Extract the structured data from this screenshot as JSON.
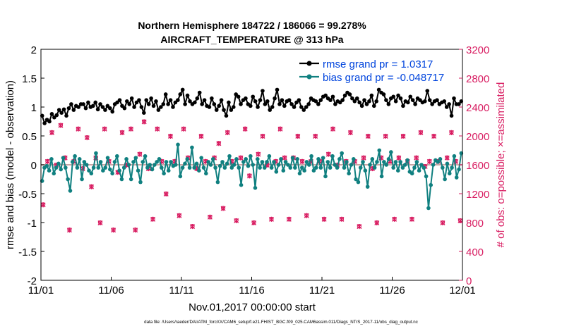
{
  "colors": {
    "rmse": "#000000",
    "bias": "#108080",
    "obs": "#d81b60",
    "zero_line": "#c9a6a6",
    "legend_text": "#0044dd"
  },
  "chart_data": {
    "type": "line",
    "title_line1": "Northern Hemisphere 184722 / 186066 = 99.278%",
    "title_line2": "AIRCRAFT_TEMPERATURE @ 313 hPa",
    "xlabel": "Nov.01,2017 00:00:00 start",
    "ylabel_left": "rmse and bias (model - observation)",
    "ylabel_right": "# of obs: o=possible; ×=assimilated",
    "footer": "data file: /Users/raeder/DAI/ATM_forcXX/CAM6_setup/f.e21.FHIST_BGC.f09_025.CAM6assim.011/Diags_NTrS_2017-11/obs_diag_output.nc",
    "x_ticks": [
      "11/01",
      "11/06",
      "11/11",
      "11/16",
      "11/21",
      "11/26",
      "12/01"
    ],
    "xlim": [
      0,
      30
    ],
    "ylim_left": [
      -2,
      2
    ],
    "ylim_right": [
      0,
      3200
    ],
    "y_ticks_left": [
      "-2",
      "-1.5",
      "-1",
      "-0.5",
      "0",
      "0.5",
      "1",
      "1.5",
      "2"
    ],
    "y_ticks_right": [
      "0",
      "400",
      "800",
      "1200",
      "1600",
      "2000",
      "2400",
      "2800",
      "3200"
    ],
    "legend": [
      "rmse grand pr = 1.0317",
      "bias grand pr = -0.048717"
    ],
    "series": [
      {
        "name": "rmse",
        "values": [
          0.85,
          0.72,
          0.78,
          0.75,
          0.88,
          0.82,
          0.86,
          0.95,
          0.9,
          0.96,
          0.85,
          0.98,
          1.05,
          0.95,
          1.02,
          1.0,
          1.05,
          1.05,
          0.98,
          1.08,
          1.0,
          1.02,
          1.08,
          0.96,
          1.05,
          1.0,
          0.95,
          1.02,
          0.98,
          0.92,
          1.05,
          1.08,
          1.12,
          1.02,
          0.98,
          1.1,
          1.05,
          1.15,
          1.0,
          1.08,
          1.12,
          1.0,
          0.9,
          1.12,
          1.05,
          1.15,
          1.02,
          1.1,
          0.95,
          1.0,
          1.05,
          1.22,
          1.05,
          1.12,
          1.0,
          1.08,
          1.12,
          1.22,
          1.3,
          1.05,
          1.2,
          1.1,
          1.05,
          1.08,
          1.15,
          1.25,
          1.05,
          1.12,
          1.02,
          1.0,
          1.15,
          1.05,
          0.95,
          1.02,
          1.12,
          0.95,
          0.85,
          1.08,
          0.95,
          1.0,
          1.22,
          1.18,
          1.05,
          1.12,
          1.15,
          1.05,
          1.02,
          1.18,
          1.1,
          1.0,
          1.12,
          1.28,
          1.05,
          1.1,
          0.95,
          1.0,
          1.15,
          1.3,
          1.05,
          1.12,
          1.02,
          1.1,
          1.12,
          1.05,
          1.0,
          1.08,
          1.12,
          1.0,
          0.95,
          1.0,
          1.05,
          1.15,
          1.12,
          1.1,
          1.05,
          1.12,
          1.18,
          1.2,
          1.15,
          1.12,
          1.18,
          1.05,
          1.1,
          1.08,
          1.12,
          1.2,
          1.25,
          1.22,
          1.15,
          1.1,
          1.15,
          1.08,
          1.02,
          1.12,
          1.05,
          1.1,
          1.2,
          1.02,
          1.1,
          1.3,
          1.25,
          1.22,
          1.12,
          1.05,
          1.15,
          1.18,
          1.1,
          1.2,
          1.15,
          1.02,
          1.1,
          1.08,
          1.18,
          1.12,
          1.05,
          1.15,
          1.12,
          1.08,
          1.1,
          1.28,
          1.12,
          1.05,
          1.1,
          1.12,
          1.05,
          1.08,
          1.1,
          1.0,
          1.05,
          0.85,
          1.15,
          1.05,
          1.05,
          1.1
        ]
      },
      {
        "name": "bias",
        "values": [
          -0.28,
          -0.05,
          -0.02,
          -0.1,
          0.1,
          -0.15,
          -0.05,
          0.02,
          -0.08,
          0.12,
          -0.05,
          -0.25,
          -0.45,
          0.05,
          0.15,
          -0.05,
          0.1,
          -0.25,
          0.05,
          0.0,
          -0.1,
          -0.15,
          -0.05,
          0.2,
          -0.05,
          0.05,
          -0.1,
          -0.05,
          0.12,
          -0.08,
          -0.15,
          0.05,
          0.15,
          -0.1,
          -0.25,
          -0.05,
          0.1,
          0.0,
          -0.25,
          0.05,
          0.12,
          -0.1,
          -0.3,
          0.05,
          0.15,
          -0.05,
          0.0,
          -0.08,
          0.0,
          0.05,
          0.1,
          -0.05,
          -0.15,
          0.05,
          -0.1,
          0.05,
          -0.02,
          0.0,
          0.35,
          -0.2,
          -0.05,
          0.02,
          0.1,
          -0.05,
          0.3,
          -0.05,
          0.02,
          -0.1,
          0.12,
          -0.05,
          -0.15,
          0.05,
          0.0,
          0.1,
          -0.05,
          -0.3,
          -0.02,
          0.05,
          -0.05,
          0.02,
          0.15,
          -0.05,
          0.0,
          0.1,
          -0.05,
          -0.35,
          0.05,
          0.1,
          -0.02,
          0.15,
          0.0,
          -0.4,
          0.1,
          -0.05,
          0.05,
          -0.05,
          0.05,
          0.15,
          -0.05,
          0.05,
          -0.12,
          0.0,
          0.1,
          -0.1,
          0.05,
          0.0,
          -0.05,
          0.12,
          -0.05,
          0.1,
          -0.15,
          -0.05,
          -0.1,
          0.05,
          0.0,
          0.15,
          -0.1,
          -0.05,
          0.1,
          -0.05,
          0.12,
          -0.2,
          0.05,
          -0.05,
          0.15,
          0.0,
          -0.05,
          0.1,
          0.2,
          -0.05,
          0.05,
          -0.15,
          0.0,
          0.1,
          -0.25,
          -0.3,
          -0.05,
          0.05,
          -0.1,
          -0.38,
          0.0,
          0.1,
          -0.05,
          0.05,
          0.25,
          -0.2,
          0.05,
          0.0,
          0.1,
          0.22,
          -0.05,
          0.05,
          -0.1,
          0.05,
          -0.05,
          0.0,
          0.08,
          -0.12,
          -0.15,
          -0.05,
          0.05,
          -0.1,
          0.0,
          -0.05,
          -0.2,
          -0.75,
          -0.35,
          0.0,
          0.08,
          0.05,
          0.1,
          -0.05,
          -0.25,
          0.02,
          -0.15,
          -0.05,
          0.15,
          -0.22,
          -0.08,
          0.2
        ]
      },
      {
        "name": "obs_possible",
        "values": [
          1050,
          1650,
          2050,
          1600,
          2150,
          1700,
          700,
          1650,
          2100,
          1550,
          1980,
          1300,
          1700,
          800,
          2100,
          1650,
          700,
          1500,
          2050,
          1600,
          2100,
          700,
          1750,
          2200,
          1550,
          850,
          2100,
          1650,
          1200,
          2000,
          1650,
          900,
          2100,
          1700,
          750,
          1550,
          2000,
          1650,
          880,
          1700,
          1900,
          1000,
          2050,
          1650,
          830,
          1700,
          2100,
          1450,
          800,
          1750,
          2000,
          1600,
          850,
          1650,
          2100,
          1700,
          850,
          1700,
          2000,
          1650,
          900,
          1650,
          2000,
          1650,
          850,
          1750,
          2100,
          1600,
          850,
          1650,
          2050,
          1650,
          750,
          1700,
          2000,
          1550,
          800,
          1700,
          2000,
          1650,
          850,
          1700,
          2000,
          1650,
          850,
          1700,
          2050,
          1580,
          1650,
          2000,
          1650,
          800,
          1700,
          2050,
          1650,
          830
        ]
      },
      {
        "name": "obs_assimilated",
        "values": [
          1045,
          1645,
          2045,
          1595,
          2145,
          1695,
          695,
          1645,
          2095,
          1545,
          1975,
          1295,
          1695,
          795,
          2095,
          1645,
          695,
          1495,
          2045,
          1595,
          2095,
          695,
          1745,
          2195,
          1545,
          845,
          2095,
          1645,
          1195,
          1995,
          1645,
          895,
          2095,
          1695,
          745,
          1545,
          1995,
          1645,
          875,
          1695,
          1895,
          995,
          2045,
          1645,
          825,
          1695,
          2095,
          1445,
          795,
          1745,
          1995,
          1595,
          845,
          1645,
          2095,
          1695,
          845,
          1695,
          1995,
          1645,
          895,
          1645,
          1995,
          1645,
          845,
          1745,
          2095,
          1595,
          845,
          1645,
          2045,
          1645,
          745,
          1695,
          1995,
          1545,
          795,
          1695,
          1995,
          1645,
          845,
          1695,
          1995,
          1645,
          845,
          1695,
          2045,
          1575,
          1645,
          1995,
          1645,
          795,
          1695,
          2045,
          1645,
          825
        ]
      }
    ]
  }
}
